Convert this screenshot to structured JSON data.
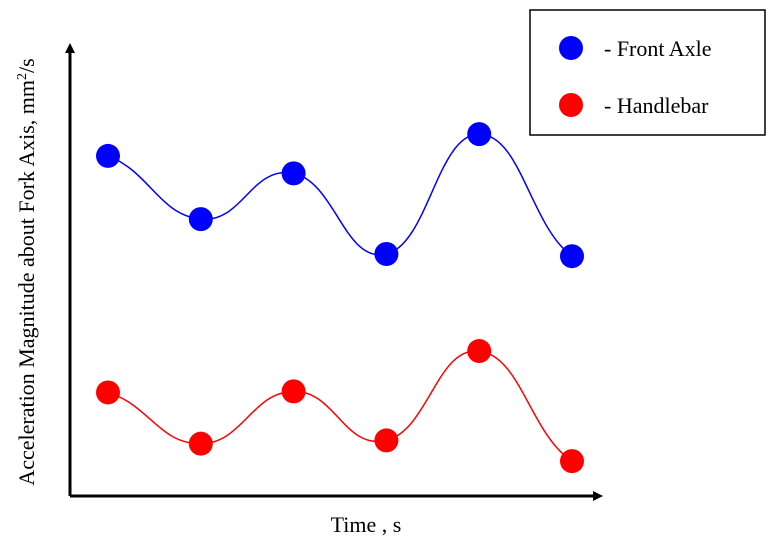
{
  "chart_data": {
    "type": "line",
    "title": "",
    "xlabel": "Time , s",
    "ylabel": "Acceleration Magnitude about Fork Axis, mm",
    "ylabel_sup": "2",
    "ylabel_tail": "/s",
    "grid": false,
    "legend_position": "top-right",
    "x": [
      1,
      2,
      3,
      4,
      5,
      6
    ],
    "series": [
      {
        "name": "Front Axle",
        "legend_label": "-  Front Axle",
        "color": "#0000ff",
        "values": [
          31.2,
          25.4,
          29.6,
          22.2,
          33.2,
          22.0
        ]
      },
      {
        "name": "Handlebar",
        "legend_label": "-  Handlebar",
        "color": "#ff0000",
        "values": [
          9.5,
          4.8,
          9.6,
          5.1,
          13.3,
          3.2
        ]
      }
    ]
  }
}
